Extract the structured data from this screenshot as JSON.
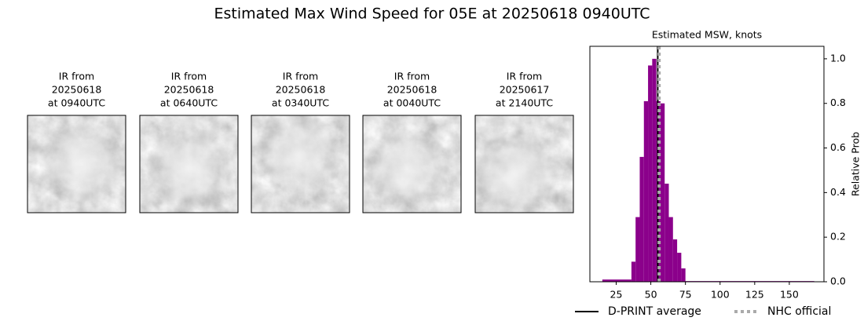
{
  "title": "Estimated Max Wind Speed for 05E at 20250618 0940UTC",
  "images": [
    {
      "caption": [
        "IR from",
        "20250618",
        "at 0940UTC"
      ]
    },
    {
      "caption": [
        "IR from",
        "20250618",
        "at 0640UTC"
      ]
    },
    {
      "caption": [
        "IR from",
        "20250618",
        "at 0340UTC"
      ]
    },
    {
      "caption": [
        "IR from",
        "20250618",
        "at 0040UTC"
      ]
    },
    {
      "caption": [
        "IR from",
        "20250617",
        "at 2140UTC"
      ]
    }
  ],
  "chart_data": {
    "type": "histogram",
    "title": "Estimated MSW, knots",
    "y_label": "Relative Prob",
    "y_axis_side": "right",
    "color": "#8b008b",
    "bins": [
      15,
      36,
      39,
      42,
      45,
      48,
      51,
      54,
      57,
      60,
      63,
      66,
      69,
      72,
      75,
      168
    ],
    "values": [
      0.01,
      0.09,
      0.29,
      0.56,
      0.81,
      0.97,
      1.0,
      0.81,
      0.8,
      0.44,
      0.29,
      0.19,
      0.13,
      0.06,
      0.003
    ],
    "xlim": [
      6,
      175
    ],
    "ylim": [
      0,
      1.056
    ],
    "xticks": [
      25,
      50,
      75,
      100,
      125,
      150
    ],
    "yticks": [
      {
        "value": 0,
        "label": "0.0"
      },
      {
        "value": 0.2,
        "label": "0.2"
      },
      {
        "value": 0.4,
        "label": "0.4"
      },
      {
        "value": 0.6,
        "label": "0.6"
      },
      {
        "value": 0.8,
        "label": "0.8"
      },
      {
        "value": 1.0,
        "label": "1.0"
      }
    ],
    "lines": [
      {
        "name": "D-PRINT average",
        "value": 55,
        "color": "#000000",
        "style": "solid"
      },
      {
        "name": "NHC official",
        "value": 56,
        "color": "#aaaaaa",
        "style": "dotted"
      }
    ]
  }
}
